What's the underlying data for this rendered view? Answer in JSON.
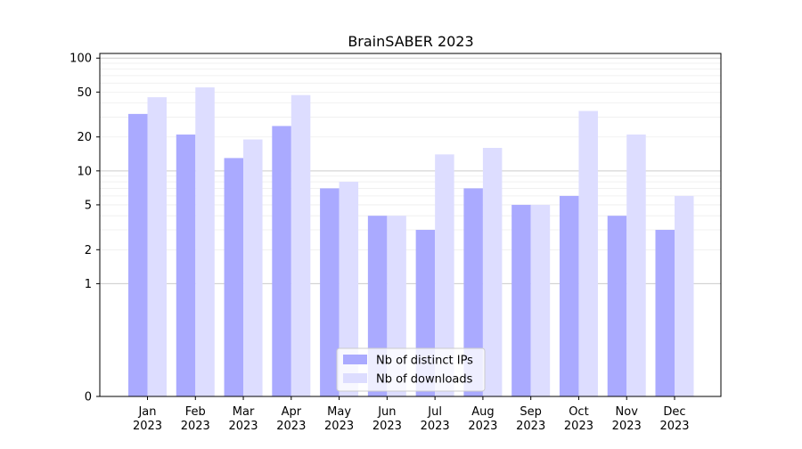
{
  "chart_data": {
    "type": "bar",
    "title": "BrainSABER 2023",
    "xlabel": "",
    "ylabel": "",
    "yscale": "symlog",
    "ylim": [
      0,
      110
    ],
    "yticks": [
      0,
      1,
      2,
      5,
      10,
      20,
      50,
      100
    ],
    "grid": true,
    "legend_position": "bottom-center",
    "categories": [
      "Jan\n2023",
      "Feb\n2023",
      "Mar\n2023",
      "Apr\n2023",
      "May\n2023",
      "Jun\n2023",
      "Jul\n2023",
      "Aug\n2023",
      "Sep\n2023",
      "Oct\n2023",
      "Nov\n2023",
      "Dec\n2023"
    ],
    "series": [
      {
        "name": "Nb of distinct IPs",
        "color": "#aaaaff",
        "values": [
          32,
          21,
          13,
          25,
          7,
          4,
          3,
          7,
          5,
          6,
          4,
          3
        ]
      },
      {
        "name": "Nb of downloads",
        "color": "#ddddff",
        "values": [
          45,
          55,
          19,
          47,
          8,
          4,
          14,
          16,
          5,
          34,
          21,
          6
        ]
      }
    ]
  }
}
